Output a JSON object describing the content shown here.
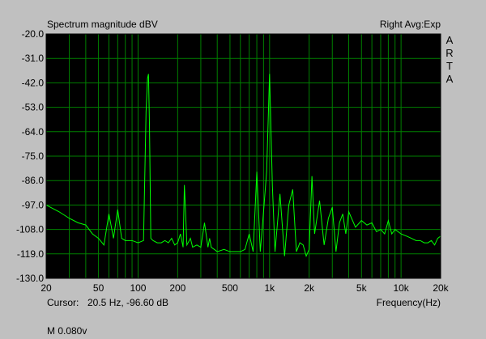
{
  "window": {
    "title": "Spectrum magnitude dBV",
    "status": "Right Avg:Exp",
    "brand_letters": [
      "A",
      "R",
      "T",
      "A"
    ]
  },
  "cursor": {
    "label": "Cursor:",
    "value": "20.5 Hz, -96.60 dB"
  },
  "footer": {
    "text": "M 0.080v"
  },
  "colors": {
    "background": "#000000",
    "grid": "#008000",
    "trace": "#00ff00",
    "panel": "#c0c0c0"
  },
  "chart_data": {
    "type": "line",
    "title": "Spectrum magnitude dBV",
    "xlabel": "Frequency(Hz)",
    "ylabel": "",
    "xscale": "log",
    "xlim": [
      20,
      20000
    ],
    "ylim": [
      -130,
      -20
    ],
    "grid": true,
    "xticks": [
      20,
      50,
      100,
      200,
      500,
      1000,
      2000,
      5000,
      10000,
      20000
    ],
    "xtick_labels": [
      "20",
      "50",
      "100",
      "200",
      "500",
      "1k",
      "2k",
      "5k",
      "10k",
      "20k"
    ],
    "yticks": [
      -20,
      -31,
      -42,
      -53,
      -64,
      -75,
      -86,
      -97,
      -108,
      -119,
      -130
    ],
    "ytick_labels": [
      "-20.0",
      "-31.0",
      "-42.0",
      "-53.0",
      "-64.0",
      "-75.0",
      "-86.0",
      "-97.0",
      "-108.0",
      "-119.0",
      "-130.0"
    ],
    "series": [
      {
        "x": [
          20,
          25,
          30,
          35,
          40,
          45,
          50,
          55,
          60,
          65,
          70,
          75,
          80,
          90,
          100,
          110,
          115,
          118,
          120,
          122,
          125,
          130,
          140,
          150,
          160,
          170,
          180,
          190,
          200,
          210,
          220,
          225,
          230,
          235,
          240,
          250,
          260,
          280,
          300,
          320,
          340,
          350,
          360,
          380,
          400,
          450,
          500,
          550,
          600,
          650,
          700,
          750,
          800,
          850,
          900,
          950,
          1000,
          1050,
          1100,
          1200,
          1300,
          1400,
          1500,
          1600,
          1700,
          1800,
          1900,
          2000,
          2100,
          2200,
          2400,
          2600,
          2800,
          3000,
          3200,
          3400,
          3600,
          3800,
          4000,
          4500,
          5000,
          5500,
          6000,
          6500,
          7000,
          7500,
          8000,
          8500,
          9000,
          10000,
          11000,
          12000,
          13000,
          14000,
          15000,
          16000,
          17000,
          18000,
          19000,
          20000
        ],
        "y": [
          -97,
          -100,
          -103,
          -105,
          -106,
          -110,
          -112,
          -115,
          -101,
          -112,
          -99,
          -112,
          -113,
          -113,
          -114,
          -113,
          -55,
          -40,
          -38,
          -60,
          -112,
          -113,
          -114,
          -114,
          -113,
          -114,
          -112,
          -115,
          -114,
          -110,
          -116,
          -88,
          -101,
          -115,
          -114,
          -112,
          -116,
          -115,
          -116,
          -105,
          -116,
          -112,
          -116,
          -117,
          -118,
          -117,
          -118,
          -118,
          -118,
          -117,
          -110,
          -118,
          -82,
          -118,
          -100,
          -82,
          -38,
          -88,
          -118,
          -92,
          -120,
          -97,
          -90,
          -118,
          -114,
          -115,
          -120,
          -117,
          -84,
          -110,
          -95,
          -115,
          -103,
          -98,
          -118,
          -105,
          -101,
          -110,
          -100,
          -107,
          -104,
          -106,
          -105,
          -109,
          -108,
          -110,
          -104,
          -110,
          -108,
          -110,
          -111,
          -112,
          -113,
          -113,
          -114,
          -114,
          -113,
          -115,
          -112,
          -111
        ]
      }
    ]
  }
}
